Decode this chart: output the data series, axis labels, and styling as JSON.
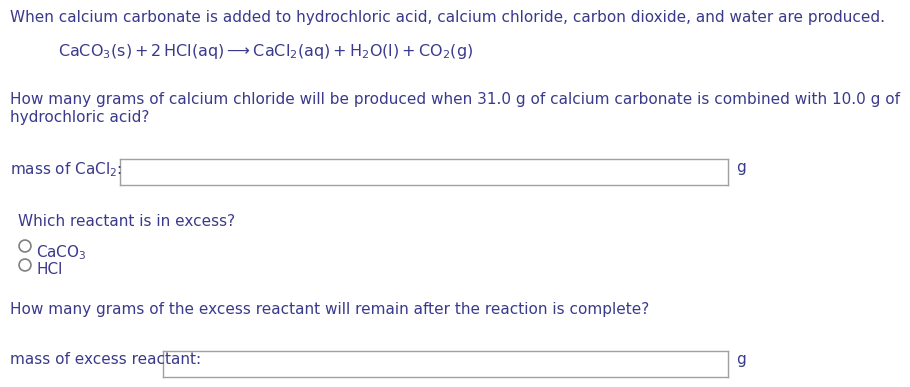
{
  "bg_color": "#ffffff",
  "text_color": "#3a3a8c",
  "intro_text": "When calcium carbonate is added to hydrochloric acid, calcium chloride, carbon dioxide, and water are produced.",
  "equation": "$\\mathrm{CaCO_3(s) + 2\\,HCl(aq) \\longrightarrow CaCl_2(aq) + H_2O(l) + CO_2(g)}$",
  "question1_part1": "How many grams of calcium chloride will be produced when 31.0 g of calcium carbonate is combined with 10.0 g of",
  "question1_part2": "hydrochloric acid?",
  "label1": "mass of $\\mathrm{CaCl_2}$:",
  "unit1": "g",
  "question2": "Which reactant is in excess?",
  "radio1_label": "$\\mathrm{CaCO_3}$",
  "radio2_label": "HCl",
  "question3": "How many grams of the excess reactant will remain after the reaction is complete?",
  "label2": "mass of excess reactant:",
  "unit2": "g",
  "box_edge_color": "#a0a0a0",
  "radio_color": "#808080",
  "fontsize": 11.0,
  "fontsize_eq": 11.5,
  "indent_eq": 0.075,
  "indent_text": 0.012
}
